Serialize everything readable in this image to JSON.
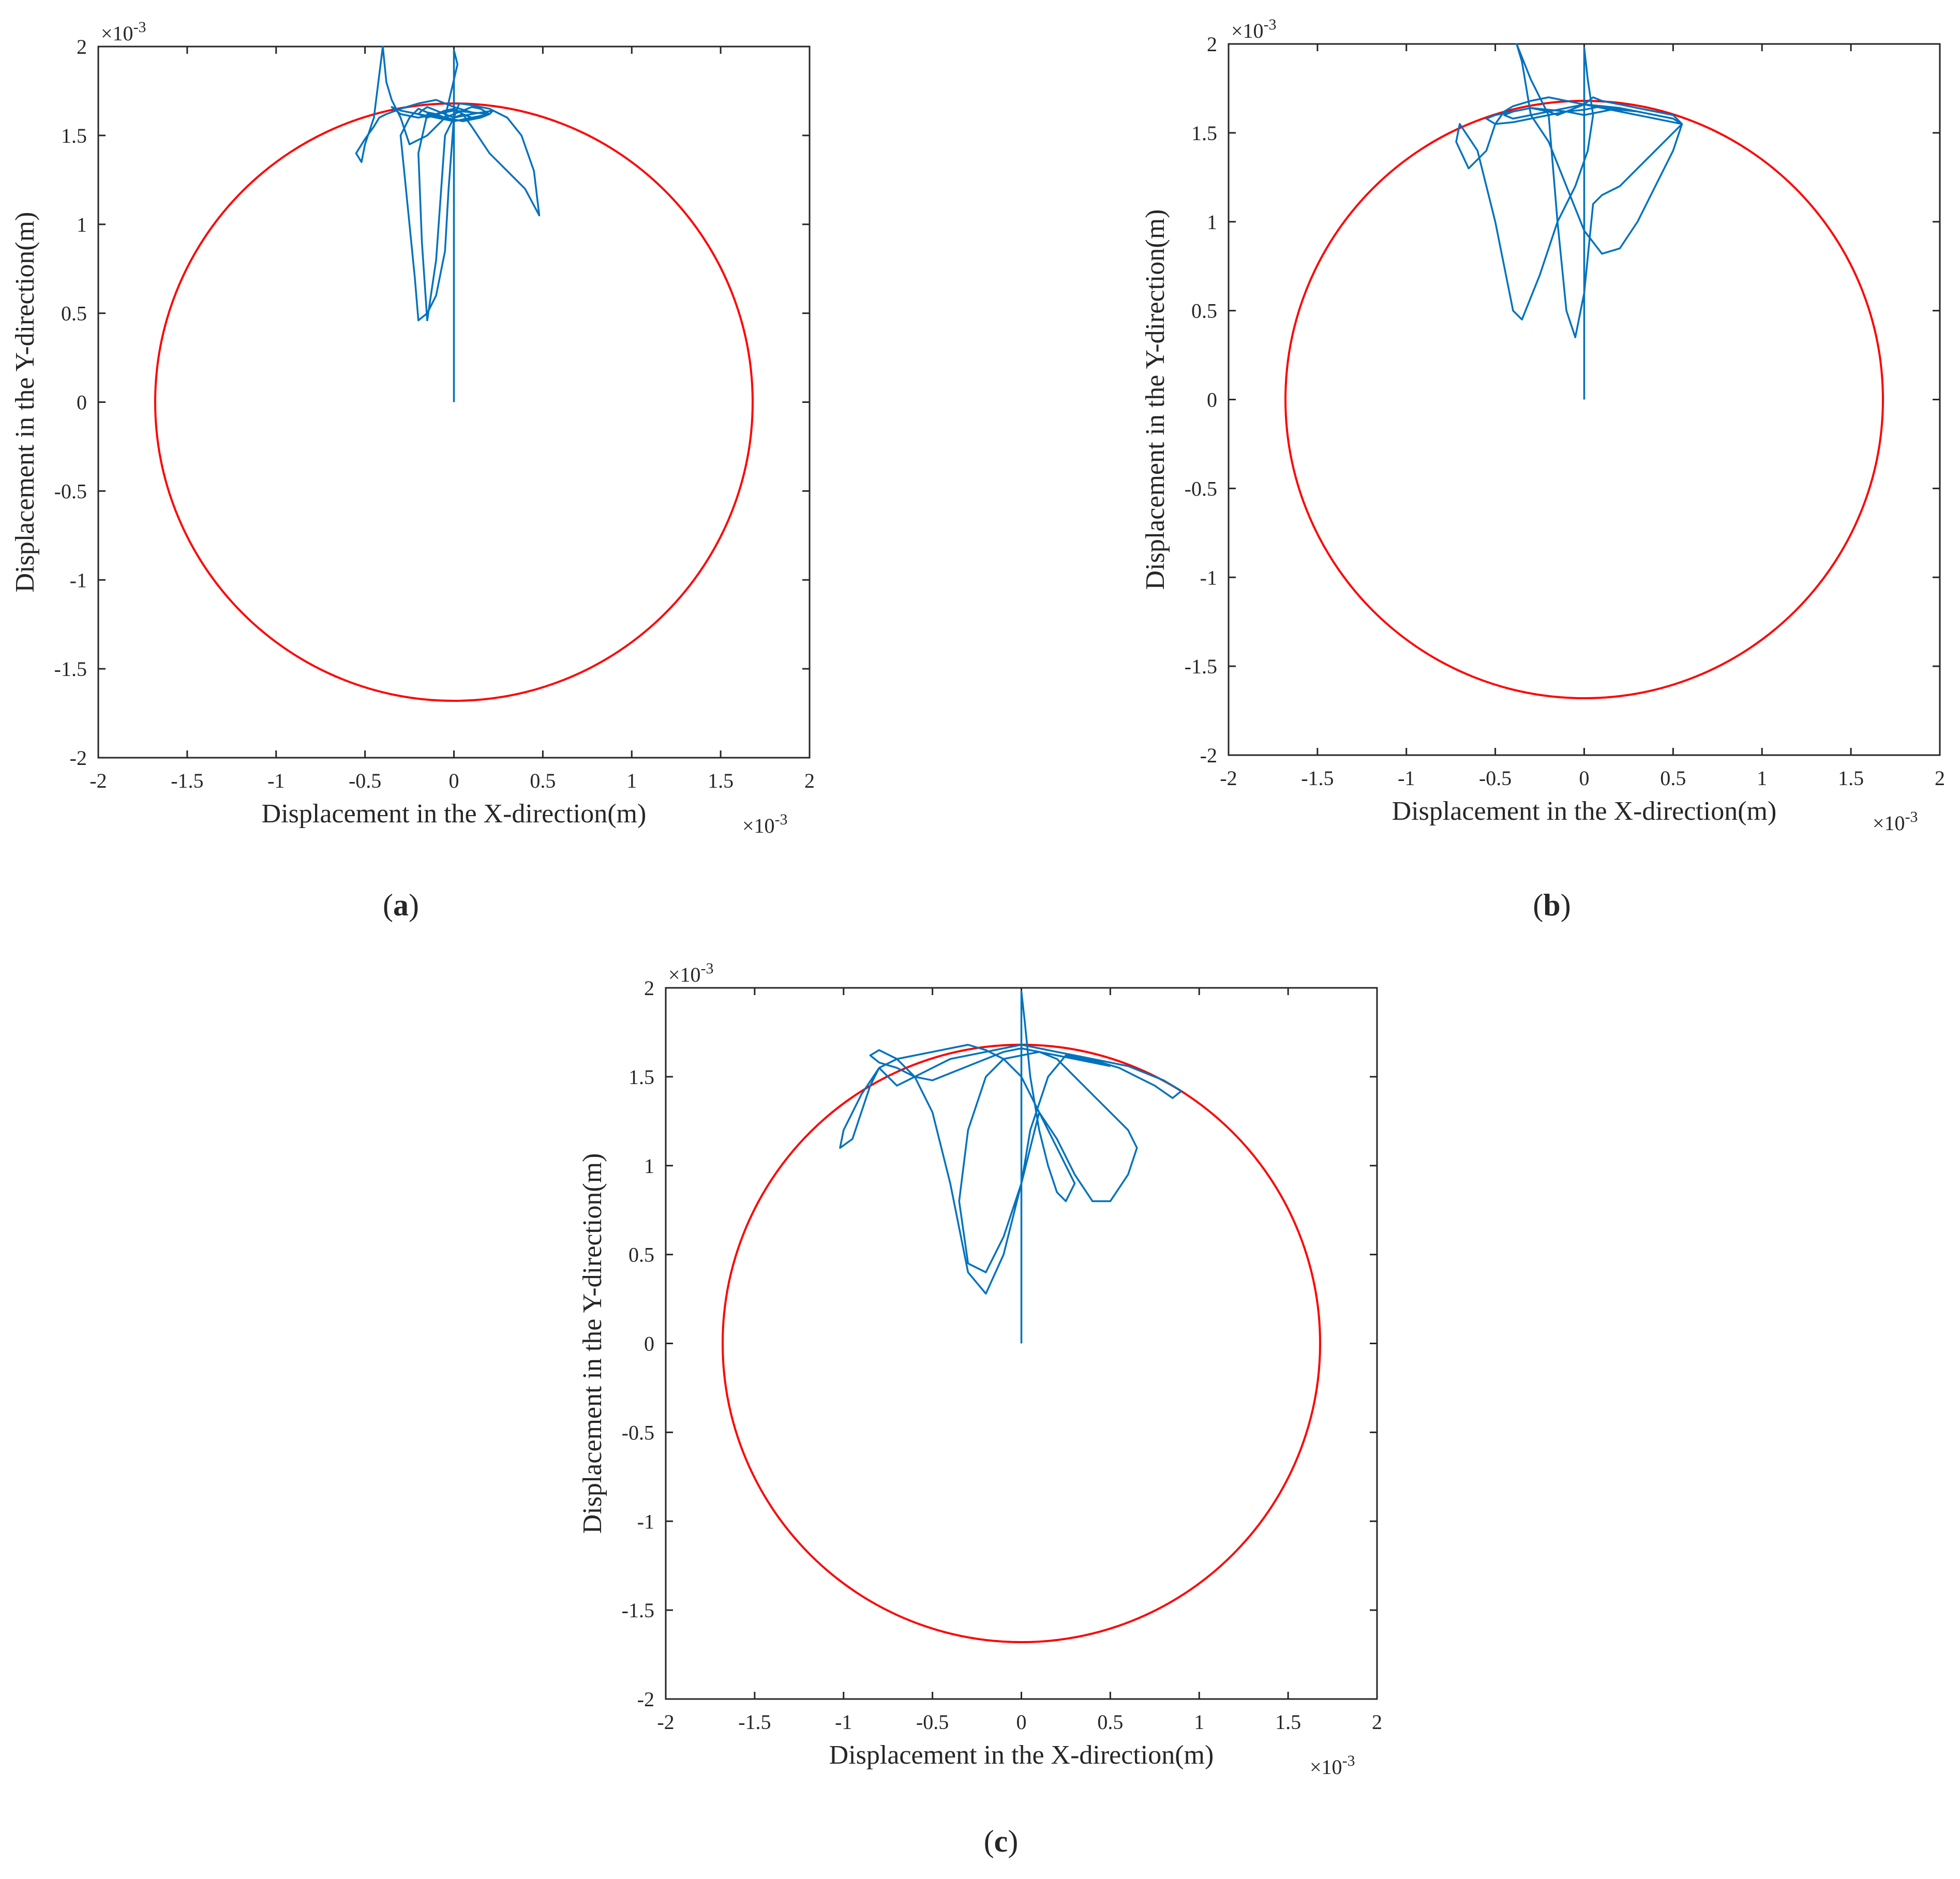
{
  "figure": {
    "panels": [
      {
        "caption_letter": "a"
      },
      {
        "caption_letter": "b"
      },
      {
        "caption_letter": "c"
      }
    ]
  },
  "colors": {
    "circle": "#ff0000",
    "trajectory": "#0072bd",
    "axis": "#262626",
    "background": "#ffffff"
  },
  "chart_data": [
    {
      "type": "line",
      "panel": "a",
      "xlabel": "Displacement in the X-direction(m)",
      "ylabel": "Displacement in the Y-direction(m)",
      "x_exponent": "×10",
      "x_exponent_power": "-3",
      "y_exponent": "×10",
      "y_exponent_power": "-3",
      "xlim": [
        -2,
        2
      ],
      "ylim": [
        -2,
        2
      ],
      "xticks": [
        "-2",
        "-1.5",
        "-1",
        "-0.5",
        "0",
        "0.5",
        "1",
        "1.5",
        "2"
      ],
      "yticks": [
        "-2",
        "-1.5",
        "-1",
        "-0.5",
        "0",
        "0.5",
        "1",
        "1.5",
        "2"
      ],
      "grid": false,
      "legend": "none",
      "series": [
        {
          "role": "clearance-circle",
          "radius": 1.68,
          "center": [
            0,
            0
          ],
          "color": "#ff0000"
        },
        {
          "role": "rotor-orbit",
          "color": "#0072bd",
          "x": [
            0,
            0,
            0.02,
            -0.05,
            -0.15,
            -0.25,
            -0.3,
            -0.35,
            -0.38,
            -0.4,
            -0.45,
            -0.5,
            -0.52,
            -0.55,
            -0.5,
            -0.45,
            -0.42,
            -0.38,
            -0.3,
            -0.2,
            -0.1,
            0,
            0.1,
            0.2,
            0.15,
            0.05,
            -0.05,
            -0.15,
            -0.2,
            -0.18,
            -0.15,
            -0.1,
            -0.05,
            0,
            0.05,
            0.1,
            0.2,
            0.3,
            0.4,
            0.48,
            0.45,
            0.38,
            0.3,
            0.2,
            0.1,
            0.03,
            0,
            -0.03,
            -0.05,
            -0.1,
            -0.15,
            -0.2,
            -0.22,
            -0.25,
            -0.28,
            -0.3,
            -0.25,
            -0.2,
            -0.15,
            -0.1,
            -0.05,
            0,
            0.05,
            0.1,
            0.15,
            0.2,
            0.1,
            0,
            -0.1,
            -0.2,
            -0.3,
            -0.35,
            -0.3,
            -0.2,
            -0.1,
            0,
            0.1,
            0.2,
            0.22,
            0.1,
            0,
            -0.1,
            -0.15,
            -0.18,
            -0.2,
            -0.15,
            -0.1,
            -0.05,
            0,
            0.05,
            0.1
          ],
          "y": [
            0,
            1.98,
            1.9,
            1.6,
            1.5,
            1.45,
            1.6,
            1.7,
            1.8,
            2.0,
            1.6,
            1.45,
            1.35,
            1.4,
            1.48,
            1.55,
            1.6,
            1.62,
            1.65,
            1.68,
            1.7,
            1.66,
            1.63,
            1.62,
            1.6,
            1.58,
            1.6,
            1.62,
            1.4,
            0.9,
            0.46,
            0.8,
            1.5,
            1.6,
            1.62,
            1.55,
            1.4,
            1.3,
            1.2,
            1.05,
            1.3,
            1.5,
            1.6,
            1.65,
            1.67,
            1.68,
            1.6,
            1.2,
            0.85,
            0.6,
            0.5,
            0.46,
            0.7,
            1.0,
            1.3,
            1.5,
            1.6,
            1.65,
            1.63,
            1.62,
            1.6,
            1.62,
            1.64,
            1.66,
            1.65,
            1.62,
            1.6,
            1.58,
            1.6,
            1.62,
            1.64,
            1.66,
            1.62,
            1.6,
            1.62,
            1.64,
            1.63,
            1.62,
            1.64,
            1.62,
            1.6,
            1.64,
            1.66,
            1.64,
            1.62,
            1.6,
            1.62,
            1.64,
            1.65,
            1.62,
            1.6
          ]
        }
      ]
    },
    {
      "type": "line",
      "panel": "b",
      "xlabel": "Displacement in the X-direction(m)",
      "ylabel": "Displacement in the Y-direction(m)",
      "x_exponent": "×10",
      "x_exponent_power": "-3",
      "y_exponent": "×10",
      "y_exponent_power": "-3",
      "xlim": [
        -2,
        2
      ],
      "ylim": [
        -2,
        2
      ],
      "xticks": [
        "-2",
        "-1.5",
        "-1",
        "-0.5",
        "0",
        "0.5",
        "1",
        "1.5",
        "2"
      ],
      "yticks": [
        "-2",
        "-1.5",
        "-1",
        "-0.5",
        "0",
        "0.5",
        "1",
        "1.5",
        "2"
      ],
      "grid": false,
      "legend": "none",
      "series": [
        {
          "role": "clearance-circle",
          "radius": 1.68,
          "center": [
            0,
            0
          ],
          "color": "#ff0000"
        },
        {
          "role": "rotor-orbit",
          "color": "#0072bd",
          "x": [
            0,
            0,
            0.02,
            0.05,
            0.02,
            -0.05,
            -0.15,
            -0.25,
            -0.35,
            -0.4,
            -0.5,
            -0.6,
            -0.7,
            -0.72,
            -0.65,
            -0.55,
            -0.5,
            -0.45,
            -0.4,
            -0.3,
            -0.2,
            -0.1,
            0,
            0.1,
            0.2,
            0.3,
            0.4,
            0.5,
            0.55,
            0.5,
            0.4,
            0.3,
            0.2,
            0.1,
            0,
            -0.1,
            -0.2,
            -0.3,
            -0.35,
            -0.38,
            -0.3,
            -0.2,
            -0.15,
            -0.1,
            -0.05,
            0,
            0.05,
            0.1,
            0.2,
            0.3,
            0.4,
            0.5,
            0.55,
            0.5,
            0.4,
            0.3,
            0.2,
            0.1,
            0.05,
            0,
            -0.05,
            -0.1,
            -0.15,
            -0.2,
            -0.3,
            -0.4,
            -0.45,
            -0.4,
            -0.3,
            -0.2,
            -0.1,
            0,
            0.1,
            0.2,
            0.3,
            0.4,
            0.5,
            0.55,
            0.5,
            0.4,
            0.3,
            0.2,
            0.1,
            0,
            -0.1,
            -0.2,
            -0.3,
            -0.4,
            -0.5,
            -0.55,
            -0.5,
            -0.4,
            -0.3,
            -0.2,
            -0.1,
            0,
            0.1,
            0.2,
            0.3
          ],
          "y": [
            0,
            1.98,
            1.8,
            1.6,
            1.4,
            1.2,
            1.0,
            0.7,
            0.45,
            0.5,
            1.0,
            1.4,
            1.55,
            1.45,
            1.3,
            1.4,
            1.55,
            1.62,
            1.65,
            1.68,
            1.7,
            1.68,
            1.66,
            1.65,
            1.63,
            1.62,
            1.6,
            1.58,
            1.55,
            1.4,
            1.2,
            1.0,
            0.85,
            0.82,
            0.95,
            1.2,
            1.45,
            1.6,
            1.9,
            2.0,
            1.8,
            1.6,
            1.0,
            0.5,
            0.35,
            0.6,
            1.1,
            1.15,
            1.2,
            1.3,
            1.4,
            1.5,
            1.55,
            1.6,
            1.62,
            1.64,
            1.66,
            1.68,
            1.7,
            1.66,
            1.64,
            1.62,
            1.6,
            1.62,
            1.64,
            1.62,
            1.6,
            1.58,
            1.6,
            1.62,
            1.64,
            1.66,
            1.64,
            1.62,
            1.6,
            1.58,
            1.56,
            1.55,
            1.58,
            1.6,
            1.62,
            1.64,
            1.65,
            1.63,
            1.62,
            1.6,
            1.58,
            1.56,
            1.55,
            1.58,
            1.6,
            1.62,
            1.64,
            1.63,
            1.62,
            1.6,
            1.62,
            1.64,
            1.62
          ]
        }
      ]
    },
    {
      "type": "line",
      "panel": "c",
      "xlabel": "Displacement in the X-direction(m)",
      "ylabel": "Displacement in the Y-direction(m)",
      "x_exponent": "×10",
      "x_exponent_power": "-3",
      "y_exponent": "×10",
      "y_exponent_power": "-3",
      "xlim": [
        -2,
        2
      ],
      "ylim": [
        -2,
        2
      ],
      "xticks": [
        "-2",
        "-1.5",
        "-1",
        "-0.5",
        "0",
        "0.5",
        "1",
        "1.5",
        "2"
      ],
      "yticks": [
        "-2",
        "-1.5",
        "-1",
        "-0.5",
        "0",
        "0.5",
        "1",
        "1.5",
        "2"
      ],
      "grid": false,
      "legend": "none",
      "series": [
        {
          "role": "clearance-circle",
          "radius": 1.68,
          "center": [
            0,
            0
          ],
          "color": "#ff0000"
        },
        {
          "role": "rotor-orbit",
          "color": "#0072bd",
          "x": [
            0,
            0,
            0.02,
            0.05,
            0.1,
            0.15,
            0.2,
            0.25,
            0.3,
            0.2,
            0.1,
            0,
            -0.1,
            -0.2,
            -0.3,
            -0.4,
            -0.5,
            -0.6,
            -0.7,
            -0.8,
            -0.9,
            -1.0,
            -1.02,
            -0.95,
            -0.9,
            -0.85,
            -0.8,
            -0.75,
            -0.7,
            -0.6,
            -0.5,
            -0.4,
            -0.3,
            -0.2,
            -0.1,
            0,
            0.1,
            0.2,
            0.3,
            0.4,
            0.5,
            0.6,
            0.7,
            0.8,
            0.9,
            0.85,
            0.75,
            0.65,
            0.55,
            0.45,
            0.35,
            0.25,
            0.15,
            0.05,
            0,
            -0.1,
            -0.2,
            -0.3,
            -0.35,
            -0.3,
            -0.2,
            -0.1,
            0,
            0.1,
            0.2,
            0.3,
            0.4,
            0.5,
            0.6,
            0.65,
            0.6,
            0.5,
            0.4,
            0.3,
            0.2,
            0.1,
            0,
            -0.1,
            -0.2,
            -0.3,
            -0.4,
            -0.5,
            -0.6,
            -0.7,
            -0.8,
            -0.85,
            -0.8,
            -0.7,
            -0.6,
            -0.5,
            -0.4,
            -0.3,
            -0.2,
            -0.1,
            0,
            0.1,
            0.2,
            0.3,
            0.4,
            0.5
          ],
          "y": [
            0,
            1.98,
            1.8,
            1.5,
            1.2,
            1.0,
            0.85,
            0.8,
            0.9,
            1.1,
            1.3,
            1.5,
            1.6,
            1.65,
            1.68,
            1.66,
            1.64,
            1.62,
            1.6,
            1.55,
            1.4,
            1.2,
            1.1,
            1.15,
            1.3,
            1.45,
            1.55,
            1.5,
            1.45,
            1.5,
            1.55,
            1.6,
            1.62,
            1.64,
            1.66,
            1.68,
            1.66,
            1.64,
            1.62,
            1.6,
            1.58,
            1.56,
            1.52,
            1.48,
            1.42,
            1.38,
            1.45,
            1.5,
            1.55,
            1.58,
            1.6,
            1.62,
            1.5,
            1.2,
            0.9,
            0.6,
            0.4,
            0.45,
            0.8,
            1.2,
            1.5,
            1.6,
            1.62,
            1.64,
            1.6,
            1.5,
            1.4,
            1.3,
            1.2,
            1.1,
            0.95,
            0.8,
            0.8,
            0.95,
            1.15,
            1.3,
            0.9,
            0.5,
            0.28,
            0.4,
            0.9,
            1.3,
            1.5,
            1.6,
            1.65,
            1.62,
            1.58,
            1.55,
            1.5,
            1.48,
            1.52,
            1.56,
            1.6,
            1.64,
            1.66,
            1.64,
            1.62,
            1.6,
            1.58,
            1.56
          ]
        }
      ]
    }
  ]
}
